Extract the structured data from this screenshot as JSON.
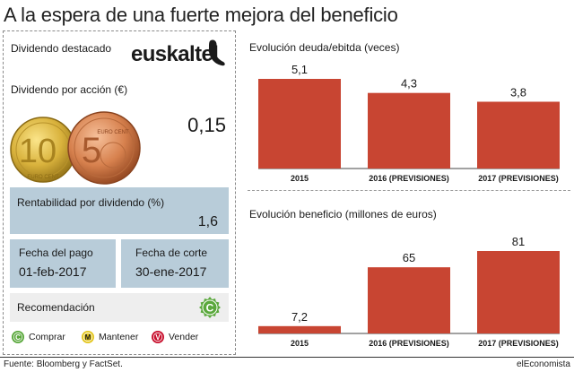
{
  "title": "A la espera de una fuerte mejora del beneficio",
  "left_panel": {
    "heading": "Dividendo destacado",
    "brand": "euskaltel",
    "dividend_label": "Dividendo por acción (€)",
    "dividend_value": "0,15",
    "coin_text_1": "10",
    "coin_text_2": "5",
    "coin_caption_1": "EURO CENT",
    "coin_caption_2": "EURO CENT",
    "yield_label": "Rentabilidad por dividendo (%)",
    "yield_value": "1,6",
    "pay_date_label": "Fecha del pago",
    "pay_date_value": "01-feb-2017",
    "cut_date_label": "Fecha de corte",
    "cut_date_value": "30-ene-2017",
    "reco_label": "Recomendación",
    "reco_badge": "C",
    "legend": [
      {
        "badge": "C",
        "label": "Comprar",
        "color": "#5aa83c"
      },
      {
        "badge": "M",
        "label": "Mantener",
        "color": "#e3c51c"
      },
      {
        "badge": "V",
        "label": "Vender",
        "color": "#c8102e"
      }
    ]
  },
  "colors": {
    "bar": "#c84532",
    "box_blue": "#b8ccd9",
    "box_grey": "#eeeeee"
  },
  "chart_data": [
    {
      "type": "bar",
      "title": "Evolución deuda/ebitda (veces)",
      "categories": [
        "2015",
        "2016 (PREVISIONES)",
        "2017 (PREVISIONES)"
      ],
      "values": [
        5.1,
        4.3,
        3.8
      ],
      "value_labels": [
        "5,1",
        "4,3",
        "3,8"
      ],
      "ylim": [
        0,
        5.1
      ],
      "grid": false
    },
    {
      "type": "bar",
      "title": "Evolución beneficio (millones de euros)",
      "categories": [
        "2015",
        "2016 (PREVISIONES)",
        "2017 (PREVISIONES)"
      ],
      "values": [
        7.2,
        65,
        81
      ],
      "value_labels": [
        "7,2",
        "65",
        "81"
      ],
      "ylim": [
        0,
        81
      ],
      "grid": false
    }
  ],
  "footer": {
    "source": "Fuente: Bloomberg y FactSet.",
    "publisher": "elEconomista"
  }
}
